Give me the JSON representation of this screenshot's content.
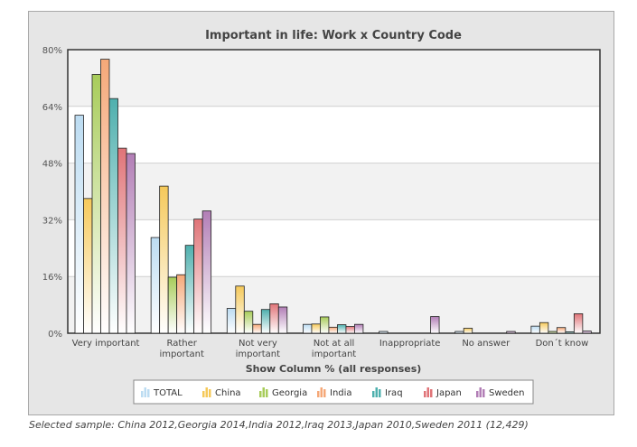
{
  "chart_data": {
    "type": "bar",
    "title": "Important in life: Work x Country Code",
    "xlabel": "Show Column % (all responses)",
    "ylabel": "",
    "ylim": [
      0,
      80
    ],
    "yticks": [
      "0%",
      "16%",
      "32%",
      "48%",
      "64%",
      "80%"
    ],
    "ytick_values": [
      0,
      16,
      32,
      48,
      64,
      80
    ],
    "grid": true,
    "legend_position": "bottom",
    "categories": [
      [
        "Very important"
      ],
      [
        "Rather",
        "important"
      ],
      [
        "Not very",
        "important"
      ],
      [
        "Not at all",
        "important"
      ],
      [
        "Inappropriate"
      ],
      [
        "No answer"
      ],
      [
        "Don´t know"
      ]
    ],
    "series": [
      {
        "name": "TOTAL",
        "color": "#bcdcf2",
        "values": [
          61.5,
          27.0,
          7.0,
          2.5,
          0.5,
          0.5,
          2.0
        ]
      },
      {
        "name": "China",
        "color": "#f5c95a",
        "values": [
          38.0,
          41.5,
          13.3,
          2.6,
          0.0,
          1.4,
          3.0
        ]
      },
      {
        "name": "Georgia",
        "color": "#a8cc5a",
        "values": [
          73.0,
          15.8,
          6.2,
          4.6,
          0.0,
          0.0,
          0.5
        ]
      },
      {
        "name": "India",
        "color": "#f5a878",
        "values": [
          77.3,
          16.5,
          2.5,
          1.7,
          0.0,
          0.0,
          1.6
        ]
      },
      {
        "name": "Iraq",
        "color": "#4fb0ae",
        "values": [
          66.2,
          24.8,
          6.7,
          2.4,
          0.0,
          0.0,
          0.4
        ]
      },
      {
        "name": "Japan",
        "color": "#e07478",
        "values": [
          52.2,
          32.2,
          8.3,
          1.9,
          0.0,
          0.0,
          5.5
        ]
      },
      {
        "name": "Sweden",
        "color": "#b27eb6",
        "values": [
          50.7,
          34.5,
          7.4,
          2.5,
          4.7,
          0.5,
          0.6
        ]
      }
    ]
  },
  "footnote": "Selected sample: China 2012,Georgia 2014,India 2012,Iraq 2013,Japan 2010,Sweden 2011 (12,429)"
}
